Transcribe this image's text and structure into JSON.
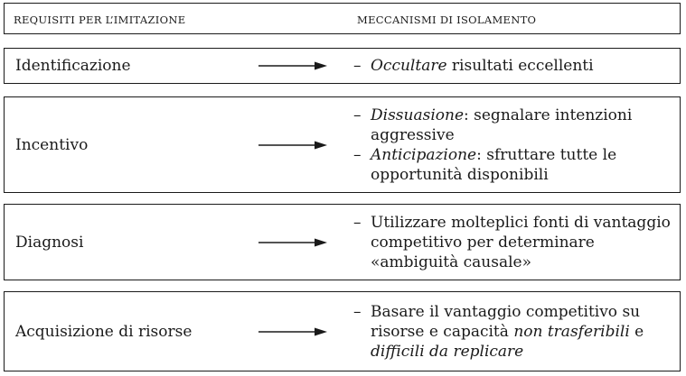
{
  "header": {
    "left": "REQUISITI PER L’IMITAZIONE",
    "right": "MECCANISMI DI ISOLAMENTO"
  },
  "rows": [
    {
      "requirement": "Identificazione",
      "mechanisms": [
        {
          "em": "Occultare",
          "rest": " risultati eccellenti"
        }
      ]
    },
    {
      "requirement": "Incentivo",
      "mechanisms": [
        {
          "em": "Dissuasione",
          "rest": ": segnalare intenzioni aggressive"
        },
        {
          "em": "Anticipazione",
          "rest": ": sfruttare tutte le opportunità disponibili"
        }
      ]
    },
    {
      "requirement": "Diagnosi",
      "mechanisms": [
        {
          "pre": "Utilizzare molteplici fonti di vantaggio competitivo per determinare «ambiguità causale»"
        }
      ]
    },
    {
      "requirement": "Acquisizione di risorse",
      "mechanisms": [
        {
          "pre": "Basare il vantaggio competitivo su risorse e capacità ",
          "em": "non trasferibili",
          "mid": " e ",
          "em2": "difficili da replicare"
        }
      ]
    }
  ],
  "dash_glyph": "–",
  "icons": {
    "arrow": "right-arrow-icon"
  },
  "colors": {
    "ink": "#1a1a1a",
    "background": "#ffffff"
  }
}
